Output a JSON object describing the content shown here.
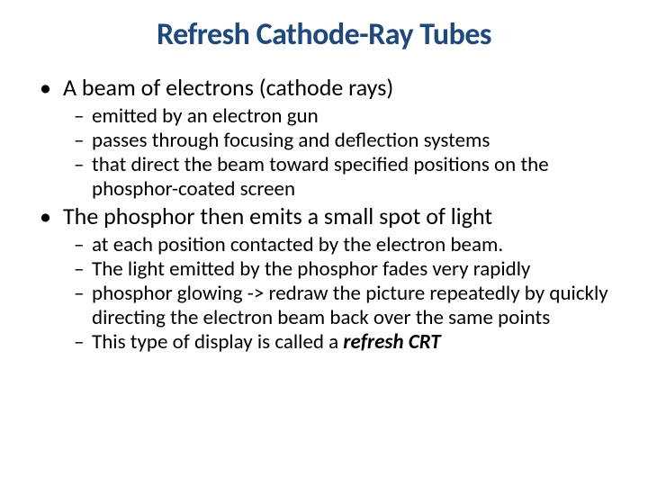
{
  "slide": {
    "title": "Refresh Cathode-Ray Tubes",
    "title_color": "#1f497d",
    "title_fontsize": 34,
    "body_color": "#000000",
    "l1_fontsize": 26,
    "l2_fontsize": 23,
    "l1_marker": "•",
    "l2_marker": "–",
    "bullets": [
      {
        "text": "A beam of electrons (cathode rays)",
        "sub": [
          "emitted by an electron gun",
          "passes through focusing and deflection systems",
          "that direct the beam toward specified positions on the phosphor-coated screen"
        ]
      },
      {
        "text": "The phosphor then emits a small spot of light",
        "sub": [
          "at each position contacted by the electron beam.",
          "The light emitted by the phosphor fades very rapidly",
          "phosphor glowing  -> redraw the picture repeatedly by quickly directing the electron beam back over the same points",
          "This type of display is called a "
        ]
      }
    ],
    "emphasis_tail": "refresh CRT"
  }
}
